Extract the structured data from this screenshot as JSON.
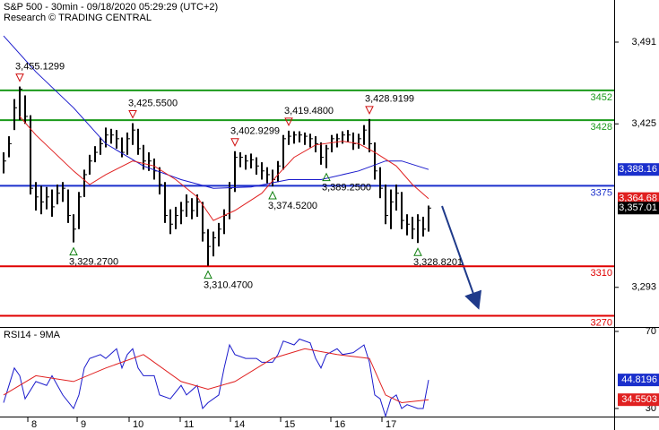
{
  "header": {
    "title": "S&P 500 - 30min - 09/18/2020 05:29:29 (UTC+2)",
    "subtitle": "Research © TRADING CENTRAL"
  },
  "chart_data": [
    {
      "type": "ohlc",
      "color": "#000000",
      "x": [
        0,
        1,
        2,
        3,
        4,
        5,
        6,
        7,
        8,
        9,
        10,
        11,
        12,
        13,
        14,
        15,
        16,
        17,
        18,
        19,
        20,
        21,
        22,
        23,
        24,
        25,
        26,
        27,
        28,
        29,
        30,
        31,
        32,
        33,
        34,
        35,
        36,
        37,
        38,
        39,
        40,
        41,
        42,
        43,
        44,
        45,
        46,
        47,
        48,
        49,
        50,
        51,
        52,
        53,
        54,
        55,
        56,
        57,
        58,
        59,
        60,
        61,
        62,
        63,
        64,
        65,
        66,
        67,
        68,
        69,
        70,
        71,
        72,
        73,
        74,
        75,
        76,
        77,
        78,
        79
      ],
      "high": [
        3402,
        3415,
        3445,
        3455.1299,
        3448,
        3432,
        3378,
        3375,
        3374,
        3372,
        3376,
        3378,
        3372,
        3352,
        3370,
        3388,
        3400,
        3407,
        3414,
        3422,
        3421,
        3420,
        3414,
        3418,
        3425.55,
        3421,
        3408,
        3402,
        3397,
        3390,
        3378,
        3356,
        3358,
        3362,
        3368,
        3365,
        3368,
        3362,
        3340,
        3338,
        3345,
        3356,
        3378,
        3402.9299,
        3402,
        3400,
        3401,
        3398,
        3394,
        3390,
        3388,
        3395,
        3416,
        3419.48,
        3419,
        3419,
        3418,
        3417,
        3415,
        3410,
        3408,
        3416,
        3417,
        3419,
        3420,
        3418,
        3417,
        3424,
        3428.9199,
        3410,
        3390,
        3376,
        3372,
        3376,
        3370,
        3352,
        3350,
        3352,
        3350,
        3359
      ],
      "low": [
        3385,
        3398,
        3420,
        3428,
        3425,
        3368,
        3355,
        3352,
        3356,
        3350,
        3360,
        3362,
        3345,
        3329.27,
        3340,
        3366,
        3384,
        3394,
        3400,
        3406,
        3409,
        3405,
        3398,
        3400,
        3408,
        3400,
        3388,
        3387,
        3380,
        3368,
        3345,
        3336,
        3340,
        3344,
        3350,
        3348,
        3350,
        3330,
        3310.47,
        3318,
        3326,
        3336,
        3348,
        3370,
        3390,
        3388,
        3389,
        3384,
        3380,
        3377,
        3374.52,
        3378,
        3388,
        3408,
        3409,
        3410,
        3408,
        3406,
        3402,
        3392,
        3389.25,
        3402,
        3406,
        3409,
        3410,
        3404,
        3405,
        3408,
        3402,
        3380,
        3365,
        3344,
        3340,
        3355,
        3340,
        3335,
        3332,
        3328.8201,
        3334,
        3338
      ],
      "close": [
        3395,
        3409,
        3438,
        3453,
        3431,
        3373,
        3366,
        3362,
        3366,
        3358,
        3369,
        3373,
        3351,
        3340,
        3366,
        3384,
        3395,
        3402,
        3409,
        3416,
        3416,
        3413,
        3402,
        3413,
        3420,
        3405,
        3395,
        3395,
        3387,
        3376,
        3351,
        3344,
        3351,
        3355,
        3362,
        3355,
        3362,
        3337,
        3326,
        3333,
        3340,
        3351,
        3373,
        3398,
        3398,
        3395,
        3396,
        3391,
        3387,
        3384,
        3380,
        3391,
        3413,
        3415,
        3416,
        3416,
        3415,
        3413,
        3409,
        3398,
        3405,
        3413,
        3413,
        3416,
        3416,
        3409,
        3413,
        3420,
        3409,
        3387,
        3373,
        3351,
        3362,
        3369,
        3347,
        3344,
        3340,
        3347,
        3340,
        3357.01
      ],
      "series": [
        {
          "color": "#1a1acc",
          "x": [
            0,
            6,
            13,
            19,
            26,
            33,
            39,
            46,
            53,
            59,
            66,
            71,
            74,
            79
          ],
          "values": [
            3496,
            3467,
            3438,
            3409,
            3391,
            3380,
            3373,
            3374,
            3380,
            3380,
            3387,
            3395,
            3395,
            3388.16
          ]
        },
        {
          "color": "#e02020",
          "x": [
            3,
            6,
            13,
            16,
            19,
            24,
            28,
            32,
            36,
            39,
            43,
            48,
            51,
            54,
            58,
            63,
            66,
            69,
            73,
            76,
            79
          ],
          "values": [
            3431,
            3416,
            3387,
            3376,
            3384,
            3395,
            3391,
            3380,
            3366,
            3347,
            3355,
            3369,
            3384,
            3398,
            3408,
            3411,
            3409,
            3402,
            3391,
            3376,
            3364.68
          ]
        }
      ],
      "levels": [
        {
          "value": 3452,
          "label": "3452",
          "color": "#1a9a1a"
        },
        {
          "value": 3428,
          "label": "3428",
          "color": "#1a9a1a"
        },
        {
          "value": 3375,
          "label": "3375",
          "color": "#1a2fcc"
        },
        {
          "value": 3310,
          "label": "3310",
          "color": "#e00000"
        },
        {
          "value": 3270,
          "label": "3270",
          "color": "#e00000"
        }
      ],
      "annotations": [
        {
          "x": 3,
          "value": 3455.1299,
          "label": "3,455.1299",
          "kind": "high"
        },
        {
          "x": 13,
          "value": 3329.27,
          "label": "3,329.2700",
          "kind": "low"
        },
        {
          "x": 24,
          "value": 3425.55,
          "label": "3,425.5500",
          "kind": "high"
        },
        {
          "x": 38,
          "value": 3310.47,
          "label": "3,310.4700",
          "kind": "low"
        },
        {
          "x": 43,
          "value": 3402.9299,
          "label": "3,402.9299",
          "kind": "high"
        },
        {
          "x": 50,
          "value": 3374.52,
          "label": "3,374.5200",
          "kind": "low"
        },
        {
          "x": 53,
          "value": 3419.48,
          "label": "3,419.4800",
          "kind": "high"
        },
        {
          "x": 60,
          "value": 3389.25,
          "label": "3,389.2500",
          "kind": "low"
        },
        {
          "x": 68,
          "value": 3428.9199,
          "label": "3,428.9199",
          "kind": "high"
        },
        {
          "x": 77,
          "value": 3328.8201,
          "label": "3,328.8201",
          "kind": "low"
        }
      ],
      "price_tags": [
        {
          "value": 3388.16,
          "label": "3,388.16",
          "color": "#1a2fcc"
        },
        {
          "value": 3364.68,
          "label": "3,364.68",
          "color": "#e02020"
        },
        {
          "value": 3357.01,
          "label": "3,357.01",
          "color": "#000000"
        }
      ],
      "xlim": [
        -0.67,
        113.5
      ],
      "ylim": [
        3261,
        3525
      ],
      "yticks": [
        {
          "value": 3293,
          "label": "3,293"
        },
        {
          "value": 3425,
          "label": "3,425"
        },
        {
          "value": 3491,
          "label": "3,491"
        }
      ]
    },
    {
      "type": "line",
      "title": "RSI14 - 9MA",
      "series": [
        {
          "color": "#1a1acc",
          "x": [
            0,
            1,
            2,
            3,
            4,
            6,
            8,
            9,
            11,
            13,
            14,
            15,
            16,
            18,
            19,
            21,
            22,
            23,
            24,
            25,
            26,
            28,
            29,
            31,
            33,
            34,
            36,
            37,
            38,
            40,
            41,
            42,
            43,
            45,
            47,
            48,
            50,
            51,
            52,
            54,
            55,
            57,
            58,
            59,
            60,
            62,
            63,
            65,
            67,
            68,
            69,
            70,
            71,
            72,
            73,
            74,
            75,
            77,
            78,
            79
          ],
          "values": [
            33,
            42,
            51,
            47,
            35,
            44,
            42,
            47,
            37,
            30,
            37,
            51,
            56,
            58,
            56,
            61,
            51,
            58,
            61,
            51,
            47,
            47,
            37,
            35,
            42,
            37,
            42,
            30,
            33,
            37,
            51,
            63,
            58,
            56,
            56,
            54,
            54,
            58,
            65,
            63,
            66,
            64,
            56,
            51,
            58,
            61,
            58,
            59,
            63,
            54,
            37,
            35,
            26,
            35,
            37,
            30,
            32,
            30,
            30,
            44.8196
          ]
        },
        {
          "color": "#e02020",
          "x": [
            0,
            6,
            13,
            19,
            26,
            33,
            38,
            43,
            50,
            56,
            62,
            68,
            71,
            74,
            79
          ],
          "values": [
            37,
            47,
            44,
            51,
            58,
            44,
            40,
            44,
            56,
            61,
            58,
            56,
            37,
            33,
            34.5503
          ]
        }
      ],
      "price_tags": [
        {
          "value": 44.8196,
          "label": "44.8196",
          "color": "#1a2fcc"
        },
        {
          "value": 34.5503,
          "label": "34.5503",
          "color": "#e02020"
        }
      ],
      "xlim": [
        -0.67,
        113.5
      ],
      "ylim": [
        25.8,
        72.3
      ],
      "yticks": [
        30,
        70
      ],
      "xticks": [
        {
          "value": 4.5,
          "label": "8"
        },
        {
          "value": 13.67,
          "label": "9"
        },
        {
          "value": 23.33,
          "label": "10"
        },
        {
          "value": 32.83,
          "label": "11"
        },
        {
          "value": 42.17,
          "label": "14"
        },
        {
          "value": 51.5,
          "label": "15"
        },
        {
          "value": 60.83,
          "label": "16"
        },
        {
          "value": 70.33,
          "label": "17"
        }
      ]
    }
  ]
}
